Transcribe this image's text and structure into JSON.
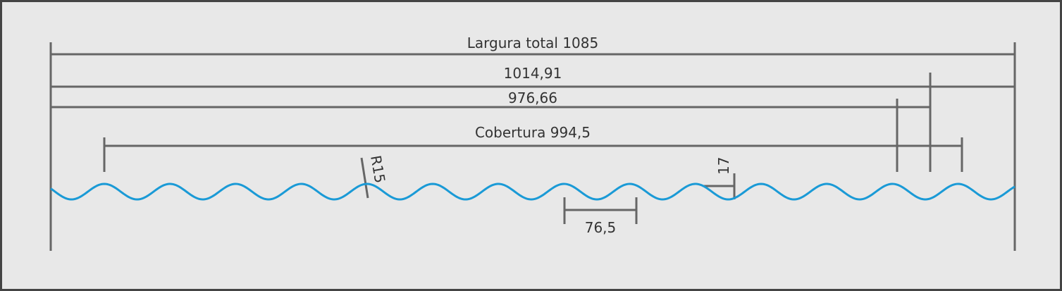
{
  "dimensions": {
    "total_width": "Largura total 1085",
    "width_1": "1014,91",
    "width_2": "976,66",
    "coverage": "Cobertura 994,5",
    "radius": "R15",
    "height": "17",
    "pitch": "76,5"
  }
}
